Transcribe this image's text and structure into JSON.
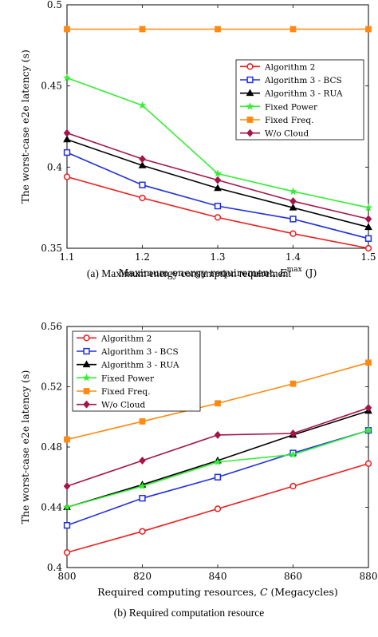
{
  "chart_data": [
    {
      "type": "line",
      "caption": "(a) Maximum energy consumption requirement",
      "xlabel": "Maximum energy requirement,",
      "xlabel_symbol": "E",
      "xlabel_sup": "max",
      "xlabel_unit": "(J)",
      "ylabel": "The worst-case e2e latency (s)",
      "xlim": [
        1.1,
        1.5
      ],
      "ylim": [
        0.35,
        0.5
      ],
      "xticks": [
        "1.1",
        "1.2",
        "1.3",
        "1.4",
        "1.5"
      ],
      "yticks": [
        "0.35",
        "0.4",
        "0.45",
        "0.5"
      ],
      "x": [
        1.1,
        1.2,
        1.3,
        1.4,
        1.5
      ],
      "legend_position": "upper-right",
      "series": [
        {
          "name": "Algorithm 2",
          "color": "#ee1c1c",
          "marker": "circle",
          "values": [
            0.394,
            0.381,
            0.369,
            0.359,
            0.35
          ]
        },
        {
          "name": "Algorithm 3 - BCS",
          "color": "#1f2fe0",
          "marker": "square",
          "values": [
            0.409,
            0.389,
            0.376,
            0.368,
            0.356
          ]
        },
        {
          "name": "Algorithm 3 - RUA",
          "color": "#000000",
          "marker": "triangle",
          "values": [
            0.417,
            0.401,
            0.387,
            0.375,
            0.363
          ]
        },
        {
          "name": "Fixed Power",
          "color": "#33ee33",
          "marker": "star",
          "values": [
            0.455,
            0.438,
            0.396,
            0.385,
            0.375
          ]
        },
        {
          "name": "Fixed Freq.",
          "color": "#ff8a12",
          "marker": "filled-square",
          "values": [
            0.485,
            0.485,
            0.485,
            0.485,
            0.485
          ]
        },
        {
          "name": "W/o Cloud",
          "color": "#a5144a",
          "marker": "diamond",
          "values": [
            0.421,
            0.405,
            0.392,
            0.379,
            0.368
          ]
        }
      ]
    },
    {
      "type": "line",
      "caption": "(b) Required computation resource",
      "xlabel": "Required computing resources,",
      "xlabel_symbol": "C",
      "xlabel_sup": "",
      "xlabel_unit": "(Megacycles)",
      "ylabel": "The worst-case e2e latency (s)",
      "xlim": [
        800,
        880
      ],
      "ylim": [
        0.4,
        0.56
      ],
      "xticks": [
        "800",
        "820",
        "840",
        "860",
        "880"
      ],
      "yticks": [
        "0.4",
        "0.44",
        "0.48",
        "0.52",
        "0.56"
      ],
      "x": [
        800,
        820,
        840,
        860,
        880
      ],
      "legend_position": "upper-left",
      "series": [
        {
          "name": "Algorithm 2",
          "color": "#ee1c1c",
          "marker": "circle",
          "values": [
            0.41,
            0.424,
            0.439,
            0.454,
            0.469
          ]
        },
        {
          "name": "Algorithm 3 - BCS",
          "color": "#1f2fe0",
          "marker": "square",
          "values": [
            0.428,
            0.446,
            0.46,
            0.476,
            0.491
          ]
        },
        {
          "name": "Algorithm 3 - RUA",
          "color": "#000000",
          "marker": "triangle",
          "values": [
            0.44,
            0.455,
            0.471,
            0.488,
            0.504
          ]
        },
        {
          "name": "Fixed Power",
          "color": "#33ee33",
          "marker": "star",
          "values": [
            0.44,
            0.454,
            0.47,
            0.475,
            0.491
          ]
        },
        {
          "name": "Fixed Freq.",
          "color": "#ff8a12",
          "marker": "filled-square",
          "values": [
            0.485,
            0.497,
            0.509,
            0.522,
            0.536
          ]
        },
        {
          "name": "W/o Cloud",
          "color": "#a5144a",
          "marker": "diamond",
          "values": [
            0.454,
            0.471,
            0.488,
            0.489,
            0.506
          ]
        }
      ]
    }
  ]
}
